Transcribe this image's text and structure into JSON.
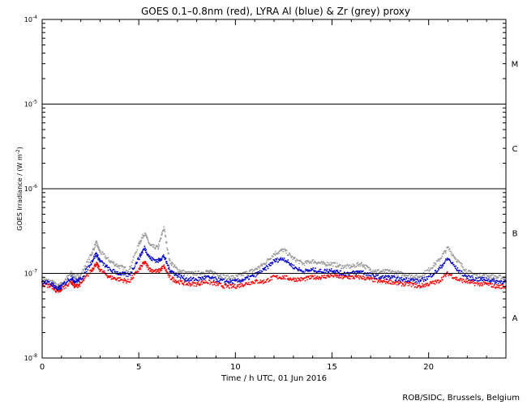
{
  "chart_data": {
    "type": "scatter",
    "title": "GOES 0.1–0.8nm (red), LYRA Al (blue) & Zr (grey) proxy",
    "xlabel": "Time / h UTC, 01 Jun 2016",
    "ylabel": "GOES Irradiance / (W m",
    "ylabel_exp": "-2",
    "ylabel_close": ")",
    "xlim": [
      0,
      24
    ],
    "ylim": [
      1e-08,
      0.0001
    ],
    "yscale": "log",
    "x_ticks": [
      {
        "value": 0,
        "label": "0"
      },
      {
        "value": 5,
        "label": "5"
      },
      {
        "value": 10,
        "label": "10"
      },
      {
        "value": 15,
        "label": "15"
      },
      {
        "value": 20,
        "label": "20"
      }
    ],
    "y_ticks": [
      {
        "value": 1e-08,
        "base": "10",
        "exp": "-8"
      },
      {
        "value": 1e-07,
        "base": "10",
        "exp": "-7"
      },
      {
        "value": 1e-06,
        "base": "10",
        "exp": "-6"
      },
      {
        "value": 1e-05,
        "base": "10",
        "exp": "-5"
      },
      {
        "value": 0.0001,
        "base": "10",
        "exp": "-4"
      }
    ],
    "class_lines": [
      1e-07,
      1e-06,
      1e-05
    ],
    "flare_classes": [
      {
        "label": "A",
        "value": 3e-08
      },
      {
        "label": "B",
        "value": 3e-07
      },
      {
        "label": "C",
        "value": 3e-06
      },
      {
        "label": "M",
        "value": 3e-05
      }
    ],
    "grid": false,
    "series": [
      {
        "color": "#ff0000",
        "x": [
          0,
          0.5,
          0.8,
          1.0,
          1.5,
          1.7,
          2.0,
          2.5,
          2.8,
          3.0,
          3.5,
          4.0,
          4.5,
          5.0,
          5.3,
          5.6,
          6.0,
          6.3,
          6.6,
          7.0,
          7.5,
          8.0,
          8.5,
          9.0,
          9.5,
          10.0,
          10.5,
          11.0,
          11.5,
          12.0,
          12.5,
          13.0,
          13.5,
          14.0,
          14.5,
          15.0,
          15.5,
          16.0,
          16.5,
          17.0,
          17.5,
          18.0,
          18.5,
          19.0,
          19.5,
          20.0,
          20.5,
          21.0,
          21.5,
          22.0,
          22.5,
          23.0,
          23.5,
          24.0
        ],
        "y": [
          7.5e-08,
          7e-08,
          6e-08,
          6.5e-08,
          8e-08,
          7e-08,
          7.5e-08,
          1.05e-07,
          1.3e-07,
          1.1e-07,
          9e-08,
          8.5e-08,
          8e-08,
          1.1e-07,
          1.35e-07,
          1.1e-07,
          1.05e-07,
          1.2e-07,
          9e-08,
          8e-08,
          7.5e-08,
          7.5e-08,
          8e-08,
          7.5e-08,
          7e-08,
          7e-08,
          7.5e-08,
          8e-08,
          8e-08,
          9e-08,
          9e-08,
          8.5e-08,
          8.5e-08,
          9e-08,
          9e-08,
          9.5e-08,
          9e-08,
          9e-08,
          9e-08,
          8.5e-08,
          8e-08,
          8e-08,
          7.5e-08,
          7.5e-08,
          7e-08,
          7.5e-08,
          8e-08,
          1e-07,
          8.5e-08,
          8e-08,
          7.5e-08,
          7.5e-08,
          7e-08,
          7e-08
        ]
      },
      {
        "color": "#0000cc",
        "x": [
          0,
          0.5,
          0.8,
          1.0,
          1.5,
          1.7,
          2.0,
          2.5,
          2.8,
          3.0,
          3.5,
          4.0,
          4.5,
          5.0,
          5.3,
          5.6,
          6.0,
          6.3,
          6.6,
          7.0,
          7.5,
          8.0,
          8.5,
          9.0,
          9.5,
          10.0,
          10.5,
          11.0,
          11.5,
          12.0,
          12.5,
          13.0,
          13.5,
          14.0,
          14.5,
          15.0,
          15.5,
          16.0,
          16.5,
          17.0,
          17.5,
          18.0,
          18.5,
          19.0,
          19.5,
          20.0,
          20.5,
          21.0,
          21.5,
          22.0,
          22.5,
          23.0,
          23.5,
          24.0
        ],
        "y": [
          8e-08,
          7.5e-08,
          6.5e-08,
          7e-08,
          9e-08,
          8e-08,
          8.5e-08,
          1.3e-07,
          1.7e-07,
          1.4e-07,
          1.1e-07,
          1e-07,
          9.5e-08,
          1.5e-07,
          2e-07,
          1.5e-07,
          1.4e-07,
          1.6e-07,
          1.1e-07,
          9.5e-08,
          8.5e-08,
          8.5e-08,
          9e-08,
          8.5e-08,
          8e-08,
          8e-08,
          8.5e-08,
          9.5e-08,
          1.1e-07,
          1.4e-07,
          1.5e-07,
          1.2e-07,
          1.05e-07,
          1.1e-07,
          1.05e-07,
          1.1e-07,
          1e-07,
          1e-07,
          1.05e-07,
          9.5e-08,
          9e-08,
          9e-08,
          8.5e-08,
          8.5e-08,
          8e-08,
          9e-08,
          1.1e-07,
          1.5e-07,
          1.1e-07,
          9e-08,
          8.5e-08,
          8.5e-08,
          8e-08,
          8e-08
        ]
      },
      {
        "color": "#999999",
        "x": [
          0,
          0.5,
          0.8,
          1.0,
          1.5,
          1.7,
          2.0,
          2.5,
          2.8,
          3.0,
          3.5,
          4.0,
          4.5,
          5.0,
          5.3,
          5.6,
          6.0,
          6.3,
          6.6,
          7.0,
          7.5,
          8.0,
          8.5,
          9.0,
          9.5,
          10.0,
          10.5,
          11.0,
          11.5,
          12.0,
          12.5,
          13.0,
          13.5,
          14.0,
          14.5,
          15.0,
          15.5,
          16.0,
          16.5,
          17.0,
          17.5,
          18.0,
          18.5,
          19.0,
          19.5,
          20.0,
          20.5,
          21.0,
          21.5,
          22.0,
          22.5,
          23.0,
          23.5,
          24.0
        ],
        "y": [
          8.5e-08,
          8e-08,
          7e-08,
          7.5e-08,
          1e-07,
          9e-08,
          9.5e-08,
          1.6e-07,
          2.3e-07,
          1.8e-07,
          1.4e-07,
          1.2e-07,
          1.1e-07,
          2.2e-07,
          3e-07,
          2.1e-07,
          2e-07,
          3.5e-07,
          1.4e-07,
          1.1e-07,
          1e-07,
          1e-07,
          1.05e-07,
          1e-07,
          9e-08,
          9e-08,
          1e-07,
          1.1e-07,
          1.3e-07,
          1.7e-07,
          1.9e-07,
          1.5e-07,
          1.3e-07,
          1.4e-07,
          1.3e-07,
          1.3e-07,
          1.2e-07,
          1.2e-07,
          1.3e-07,
          1.1e-07,
          1.05e-07,
          1.05e-07,
          1e-07,
          9.5e-08,
          9e-08,
          1.1e-07,
          1.4e-07,
          2e-07,
          1.4e-07,
          1.05e-07,
          9.5e-08,
          9.5e-08,
          9e-08,
          9e-08
        ]
      }
    ]
  },
  "credit": "ROB/SIDC, Brussels, Belgium"
}
